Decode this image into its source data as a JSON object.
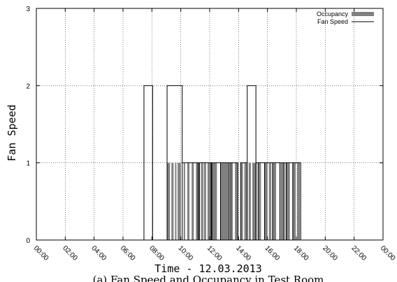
{
  "chart_data": {
    "type": "area",
    "caption": "(a) Fan Speed and Occupancy in Test Room",
    "xlabel": "Time - 12.03.2013",
    "ylabel": "Fan Speed",
    "xlim": [
      0,
      24
    ],
    "ylim": [
      0,
      3
    ],
    "x_tick_labels": [
      "00:00",
      "02:00",
      "04:00",
      "06:00",
      "08:00",
      "10:00",
      "12:00",
      "14:00",
      "16:00",
      "18:00",
      "20:00",
      "22:00",
      "00:00"
    ],
    "y_tick_labels": [
      "0",
      "1",
      "2",
      "3"
    ],
    "grid": true,
    "legend_position": "top-right",
    "series": [
      {
        "name": "Occupancy",
        "style": "filled",
        "color": "#808080",
        "value": 1,
        "intervals_hours": [
          [
            9.05,
            9.25
          ],
          [
            9.35,
            9.5
          ],
          [
            9.6,
            9.7
          ],
          [
            9.78,
            10.0
          ],
          [
            10.2,
            10.3
          ],
          [
            10.45,
            10.6
          ],
          [
            10.75,
            10.9
          ],
          [
            11.05,
            11.3
          ],
          [
            11.4,
            11.55
          ],
          [
            11.6,
            11.75
          ],
          [
            11.85,
            12.1
          ],
          [
            12.15,
            12.5
          ],
          [
            12.75,
            13.35
          ],
          [
            13.45,
            13.6
          ],
          [
            13.75,
            13.95
          ],
          [
            14.15,
            14.3
          ],
          [
            14.4,
            14.6
          ],
          [
            14.7,
            14.85
          ],
          [
            14.95,
            15.25
          ],
          [
            15.35,
            15.55
          ],
          [
            15.8,
            16.0
          ],
          [
            16.1,
            16.25
          ],
          [
            16.35,
            16.6
          ],
          [
            16.9,
            17.15
          ],
          [
            17.25,
            17.55
          ],
          [
            17.75,
            17.95
          ],
          [
            18.05,
            18.25
          ]
        ]
      },
      {
        "name": "Fan Speed",
        "style": "step",
        "color": "#000000",
        "points_hours": [
          [
            0,
            0
          ],
          [
            7.45,
            2
          ],
          [
            8.05,
            0
          ],
          [
            9.05,
            2
          ],
          [
            10.1,
            1
          ],
          [
            11.2,
            1
          ],
          [
            11.3,
            1
          ],
          [
            12.1,
            1
          ],
          [
            12.15,
            1
          ],
          [
            12.75,
            1
          ],
          [
            13.35,
            1
          ],
          [
            13.45,
            1
          ],
          [
            13.95,
            0
          ],
          [
            14.15,
            1
          ],
          [
            14.6,
            2
          ],
          [
            15.2,
            1
          ],
          [
            15.35,
            1
          ],
          [
            15.8,
            1
          ],
          [
            16.35,
            1
          ],
          [
            16.85,
            1
          ],
          [
            17.15,
            1
          ],
          [
            17.3,
            1
          ],
          [
            17.75,
            1
          ],
          [
            18.3,
            0
          ],
          [
            24,
            0
          ]
        ]
      }
    ]
  }
}
